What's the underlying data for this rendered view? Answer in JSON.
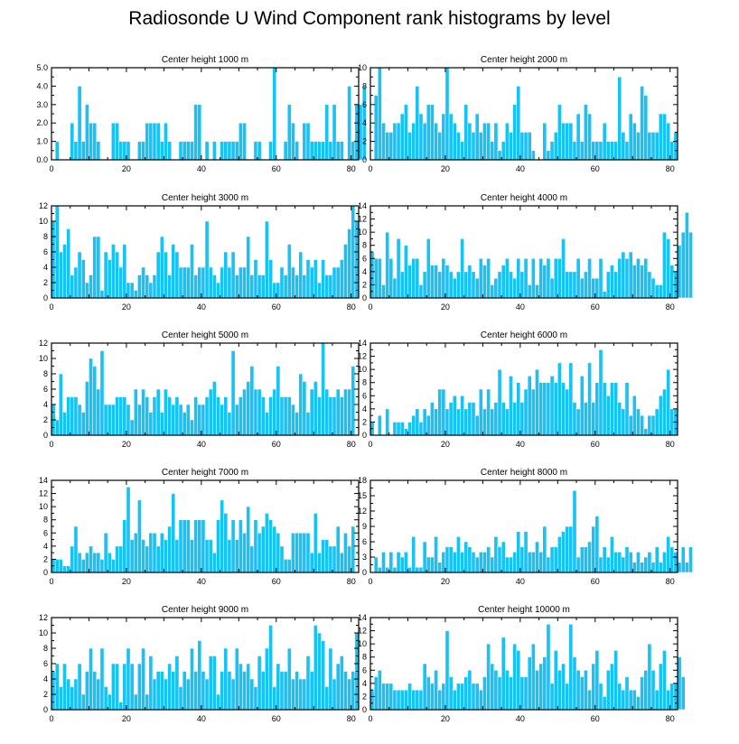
{
  "title": "Radiosonde U Wind Component rank histograms by level",
  "colors": {
    "bar": "#18c2f5",
    "bar_edge": "#ffffff",
    "axis": "#000000"
  },
  "chart_data": [
    {
      "type": "bar",
      "title": "Center height 1000 m",
      "xlim": [
        0,
        82
      ],
      "ylim": [
        0,
        5
      ],
      "xticks": [
        "0",
        "20",
        "40",
        "60",
        "80"
      ],
      "yticks": [
        "0.0",
        "1.0",
        "2.0",
        "3.0",
        "4.0",
        "5.0"
      ],
      "values": [
        0,
        1,
        0,
        0,
        0,
        2,
        1,
        4,
        1,
        3,
        2,
        2,
        1,
        0,
        0,
        0,
        2,
        2,
        1,
        1,
        1,
        0,
        0,
        1,
        1,
        2,
        2,
        2,
        2,
        1,
        2,
        1,
        0,
        0,
        1,
        1,
        1,
        1,
        3,
        3,
        0,
        1,
        0,
        1,
        0,
        1,
        1,
        1,
        1,
        1,
        2,
        2,
        0,
        0,
        1,
        1,
        0,
        0,
        1,
        5,
        0,
        0,
        1,
        3,
        2,
        1,
        0,
        2,
        2,
        1,
        1,
        1,
        1,
        3,
        1,
        3,
        1,
        1,
        0,
        4,
        1,
        3,
        3,
        4
      ]
    },
    {
      "type": "bar",
      "title": "Center height 2000 m",
      "xlim": [
        0,
        82
      ],
      "ylim": [
        0,
        10
      ],
      "xticks": [
        "0",
        "20",
        "40",
        "60",
        "80"
      ],
      "yticks": [
        "0",
        "2",
        "4",
        "6",
        "8",
        "10"
      ],
      "values": [
        0,
        7,
        10,
        4,
        3,
        3,
        4,
        4,
        5,
        6,
        3,
        4,
        8,
        5,
        4,
        6,
        6,
        4,
        3,
        5,
        10,
        5,
        4,
        3,
        2,
        6,
        4,
        3,
        5,
        3,
        4,
        4,
        2,
        4,
        1,
        2,
        4,
        3,
        6,
        8,
        3,
        3,
        3,
        1,
        0,
        0,
        4,
        1,
        2,
        3,
        6,
        4,
        4,
        4,
        2,
        5,
        2,
        6,
        5,
        2,
        2,
        2,
        4,
        2,
        2,
        2,
        9,
        3,
        2,
        5,
        4,
        3,
        8,
        7,
        3,
        3,
        3,
        5,
        5,
        4,
        2,
        3
      ]
    },
    {
      "type": "bar",
      "title": "Center height 3000 m",
      "xlim": [
        0,
        82
      ],
      "ylim": [
        0,
        12
      ],
      "xticks": [
        "0",
        "20",
        "40",
        "60",
        "80"
      ],
      "yticks": [
        "0",
        "2",
        "4",
        "6",
        "8",
        "10",
        "12"
      ],
      "values": [
        10,
        12,
        6,
        7,
        9,
        3,
        4,
        6,
        5,
        2,
        3,
        8,
        8,
        1,
        6,
        5,
        7,
        6,
        4,
        7,
        2,
        2,
        1,
        3,
        4,
        3,
        2,
        3,
        6,
        8,
        6,
        3,
        7,
        6,
        4,
        4,
        4,
        7,
        3,
        4,
        4,
        10,
        4,
        3,
        2,
        4,
        6,
        4,
        6,
        3,
        4,
        4,
        8,
        3,
        5,
        3,
        3,
        10,
        5,
        2,
        2,
        4,
        3,
        7,
        4,
        3,
        6,
        3,
        5,
        4,
        5,
        2,
        5,
        3,
        3,
        4,
        4,
        5,
        7,
        9,
        12,
        10
      ]
    },
    {
      "type": "bar",
      "title": "Center height 4000 m",
      "xlim": [
        0,
        82
      ],
      "ylim": [
        0,
        14
      ],
      "xticks": [
        "0",
        "20",
        "40",
        "60",
        "80"
      ],
      "yticks": [
        "0",
        "2",
        "4",
        "6",
        "8",
        "10",
        "12",
        "14"
      ],
      "values": [
        7,
        6,
        6,
        2,
        10,
        6,
        3,
        9,
        4,
        8,
        5,
        6,
        6,
        2,
        4,
        9,
        5,
        5,
        4,
        6,
        5,
        4,
        3,
        4,
        9,
        4,
        5,
        4,
        3,
        6,
        5,
        6,
        2,
        3,
        4,
        5,
        6,
        4,
        3,
        6,
        4,
        6,
        2,
        6,
        2,
        6,
        5,
        6,
        3,
        6,
        6,
        9,
        4,
        4,
        4,
        6,
        3,
        4,
        6,
        3,
        3,
        6,
        1,
        4,
        5,
        4,
        6,
        7,
        6,
        7,
        5,
        6,
        5,
        6,
        4,
        3,
        2,
        2,
        10,
        9,
        5,
        4,
        8,
        10,
        13,
        10
      ]
    },
    {
      "type": "bar",
      "title": "Center height 5000 m",
      "xlim": [
        0,
        82
      ],
      "ylim": [
        0,
        12
      ],
      "xticks": [
        "0",
        "20",
        "40",
        "60",
        "80"
      ],
      "yticks": [
        "0",
        "2",
        "4",
        "6",
        "8",
        "10",
        "12"
      ],
      "values": [
        4,
        2,
        8,
        3,
        5,
        5,
        5,
        4,
        3,
        7,
        10,
        9,
        6,
        11,
        4,
        4,
        4,
        5,
        5,
        5,
        4,
        2,
        6,
        4,
        6,
        5,
        3,
        5,
        6,
        3,
        6,
        5,
        4,
        5,
        4,
        3,
        4,
        2,
        5,
        4,
        4,
        5,
        6,
        7,
        5,
        4,
        5,
        3,
        11,
        4,
        5,
        6,
        7,
        9,
        6,
        6,
        5,
        3,
        5,
        6,
        9,
        5,
        5,
        5,
        4,
        3,
        8,
        7,
        3,
        6,
        7,
        5,
        12,
        6,
        5,
        5,
        6,
        5,
        6,
        6,
        9
      ]
    },
    {
      "type": "bar",
      "title": "Center height 6000 m",
      "xlim": [
        0,
        82
      ],
      "ylim": [
        0,
        14
      ],
      "xticks": [
        "0",
        "20",
        "40",
        "60",
        "80"
      ],
      "yticks": [
        "0",
        "2",
        "4",
        "6",
        "8",
        "10",
        "12",
        "14"
      ],
      "values": [
        2,
        0,
        3,
        0,
        4,
        0,
        2,
        2,
        2,
        1,
        2,
        3,
        4,
        2,
        4,
        3,
        5,
        4,
        7,
        7,
        4,
        5,
        6,
        4,
        6,
        4,
        5,
        5,
        3,
        7,
        4,
        7,
        4,
        5,
        10,
        5,
        4,
        9,
        5,
        8,
        5,
        7,
        9,
        7,
        10,
        8,
        8,
        8,
        9,
        8,
        11,
        8,
        7,
        11,
        5,
        4,
        9,
        5,
        11,
        5,
        8,
        13,
        8,
        6,
        8,
        8,
        5,
        4,
        8,
        3,
        6,
        4,
        3,
        1,
        3,
        3,
        4,
        6,
        7,
        10,
        4,
        4
      ]
    },
    {
      "type": "bar",
      "title": "Center height 7000 m",
      "xlim": [
        0,
        82
      ],
      "ylim": [
        0,
        14
      ],
      "xticks": [
        "0",
        "20",
        "40",
        "60",
        "80"
      ],
      "yticks": [
        "0",
        "2",
        "4",
        "6",
        "8",
        "10",
        "12",
        "14"
      ],
      "values": [
        2,
        2,
        2,
        1,
        1,
        4,
        7,
        3,
        2,
        3,
        4,
        3,
        3,
        2,
        6,
        3,
        2,
        4,
        4,
        8,
        13,
        5,
        6,
        11,
        5,
        4,
        6,
        6,
        4,
        6,
        5,
        7,
        12,
        5,
        8,
        8,
        8,
        5,
        8,
        8,
        8,
        5,
        5,
        3,
        8,
        11,
        9,
        5,
        8,
        5,
        8,
        6,
        10,
        4,
        8,
        6,
        7,
        9,
        8,
        7,
        6,
        4,
        2,
        2,
        6,
        6,
        6,
        6,
        6,
        3,
        9,
        3,
        5,
        5,
        4,
        4,
        7,
        3,
        6,
        4,
        7
      ]
    },
    {
      "type": "bar",
      "title": "Center height 8000 m",
      "xlim": [
        0,
        82
      ],
      "ylim": [
        0,
        18
      ],
      "xticks": [
        "0",
        "20",
        "40",
        "60",
        "80"
      ],
      "yticks": [
        "0",
        "3",
        "6",
        "9",
        "12",
        "15",
        "18"
      ],
      "values": [
        0,
        3,
        1,
        4,
        1,
        4,
        1,
        4,
        3,
        4,
        1,
        7,
        1,
        1,
        6,
        3,
        3,
        7,
        2,
        4,
        5,
        5,
        4,
        7,
        4,
        6,
        5,
        4,
        3,
        4,
        4,
        5,
        3,
        7,
        5,
        6,
        3,
        3,
        4,
        8,
        5,
        8,
        4,
        4,
        6,
        4,
        9,
        3,
        5,
        5,
        7,
        8,
        9,
        9,
        16,
        3,
        5,
        5,
        6,
        9,
        11,
        3,
        5,
        3,
        7,
        4,
        4,
        3,
        5,
        4,
        2,
        4,
        2,
        3,
        4,
        2,
        5,
        2,
        4,
        7,
        5,
        4,
        2,
        5,
        2,
        5
      ]
    },
    {
      "type": "bar",
      "title": "Center height 9000 m",
      "xlim": [
        0,
        82
      ],
      "ylim": [
        0,
        12
      ],
      "xticks": [
        "0",
        "20",
        "40",
        "60",
        "80"
      ],
      "yticks": [
        "0",
        "2",
        "4",
        "6",
        "8",
        "10",
        "12"
      ],
      "values": [
        5,
        6,
        3,
        6,
        4,
        3,
        4,
        6,
        2,
        5,
        8,
        5,
        4,
        8,
        3,
        2,
        6,
        6,
        1,
        6,
        8,
        6,
        2,
        6,
        8,
        2,
        7,
        4,
        5,
        5,
        4,
        6,
        5,
        7,
        3,
        5,
        4,
        8,
        5,
        9,
        5,
        4,
        7,
        7,
        2,
        5,
        8,
        5,
        4,
        8,
        6,
        5,
        6,
        4,
        3,
        7,
        5,
        8,
        11,
        3,
        6,
        5,
        5,
        8,
        4,
        5,
        4,
        4,
        7,
        5,
        11,
        10,
        9,
        3,
        8,
        4,
        6,
        7,
        5,
        4,
        5,
        10
      ]
    },
    {
      "type": "bar",
      "title": "Center height 10000 m",
      "xlim": [
        0,
        82
      ],
      "ylim": [
        0,
        14
      ],
      "xticks": [
        "0",
        "20",
        "40",
        "60",
        "80"
      ],
      "yticks": [
        "0",
        "2",
        "4",
        "6",
        "8",
        "10",
        "12",
        "14"
      ],
      "values": [
        3,
        5,
        6,
        4,
        4,
        4,
        3,
        3,
        3,
        3,
        4,
        3,
        3,
        3,
        7,
        5,
        4,
        6,
        3,
        4,
        12,
        5,
        3,
        4,
        4,
        5,
        6,
        4,
        4,
        3,
        5,
        10,
        7,
        6,
        5,
        11,
        6,
        5,
        10,
        9,
        5,
        5,
        8,
        10,
        6,
        7,
        8,
        13,
        4,
        9,
        6,
        7,
        4,
        13,
        8,
        6,
        5,
        6,
        3,
        7,
        9,
        4,
        2,
        6,
        7,
        9,
        4,
        3,
        5,
        3,
        3,
        2,
        5,
        6,
        10,
        6,
        3,
        7,
        9,
        3,
        4,
        4,
        8,
        5
      ]
    }
  ]
}
